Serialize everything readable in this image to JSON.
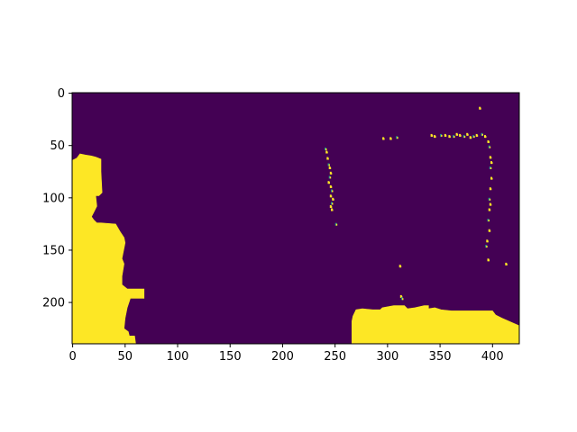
{
  "chart_data": {
    "type": "heatmap",
    "title": "",
    "xlabel": "",
    "ylabel": "",
    "image_shape": [
      240,
      426
    ],
    "xlim": [
      -0.5,
      425.5
    ],
    "ylim": [
      239.5,
      -0.5
    ],
    "xticks": [
      0,
      50,
      100,
      150,
      200,
      250,
      300,
      350,
      400
    ],
    "xtick_labels": [
      "0",
      "50",
      "100",
      "150",
      "200",
      "250",
      "300",
      "350",
      "400"
    ],
    "yticks": [
      0,
      50,
      100,
      150,
      200
    ],
    "ytick_labels": [
      "0",
      "50",
      "100",
      "150",
      "200"
    ],
    "colormap": "viridis",
    "colors": {
      "low": "#440154",
      "high": "#fde725",
      "mid": "#21918c"
    },
    "value_range": [
      0,
      1
    ],
    "regions": [
      {
        "name": "left-blob",
        "value": 1,
        "polygon": [
          [
            0,
            64
          ],
          [
            4,
            62
          ],
          [
            7,
            58
          ],
          [
            12,
            59
          ],
          [
            18,
            60
          ],
          [
            22,
            61
          ],
          [
            27,
            63
          ],
          [
            27,
            75
          ],
          [
            28,
            95
          ],
          [
            25,
            98
          ],
          [
            22,
            98
          ],
          [
            23,
            108
          ],
          [
            20,
            114
          ],
          [
            18,
            118
          ],
          [
            20,
            121
          ],
          [
            23,
            124
          ],
          [
            27,
            124
          ],
          [
            41,
            125
          ],
          [
            45,
            132
          ],
          [
            49,
            138
          ],
          [
            50,
            143
          ],
          [
            47,
            158
          ],
          [
            49,
            163
          ],
          [
            47,
            175
          ],
          [
            47,
            183
          ],
          [
            52,
            187
          ],
          [
            68,
            187
          ],
          [
            68,
            196
          ],
          [
            55,
            196
          ],
          [
            52,
            205
          ],
          [
            50,
            215
          ],
          [
            49,
            225
          ],
          [
            53,
            228
          ],
          [
            54,
            232
          ],
          [
            59,
            232
          ],
          [
            60,
            239
          ],
          [
            0,
            239
          ]
        ]
      },
      {
        "name": "bottom-right-blob",
        "value": 1,
        "polygon": [
          [
            266,
            239
          ],
          [
            266,
            218
          ],
          [
            267,
            213
          ],
          [
            270,
            207
          ],
          [
            276,
            206
          ],
          [
            286,
            207
          ],
          [
            293,
            207
          ],
          [
            295,
            205
          ],
          [
            306,
            203
          ],
          [
            316,
            203
          ],
          [
            319,
            206
          ],
          [
            326,
            205
          ],
          [
            335,
            203
          ],
          [
            339,
            203
          ],
          [
            339,
            206
          ],
          [
            345,
            205
          ],
          [
            351,
            207
          ],
          [
            361,
            208
          ],
          [
            375,
            208
          ],
          [
            400,
            208
          ],
          [
            403,
            212
          ],
          [
            409,
            215
          ],
          [
            418,
            219
          ],
          [
            425,
            222
          ],
          [
            425,
            239
          ]
        ]
      }
    ],
    "specks": [
      [
        240,
        52
      ],
      [
        241,
        55
      ],
      [
        242,
        61
      ],
      [
        243,
        67
      ],
      [
        244,
        70
      ],
      [
        245,
        75
      ],
      [
        244,
        79
      ],
      [
        243,
        84
      ],
      [
        245,
        88
      ],
      [
        246,
        92
      ],
      [
        245,
        97
      ],
      [
        247,
        100
      ],
      [
        246,
        104
      ],
      [
        245,
        107
      ],
      [
        246,
        110
      ],
      [
        250,
        124
      ],
      [
        295,
        42
      ],
      [
        302,
        42
      ],
      [
        308,
        41
      ],
      [
        311,
        164
      ],
      [
        312,
        193
      ],
      [
        313,
        195
      ],
      [
        341,
        39
      ],
      [
        344,
        40
      ],
      [
        350,
        39
      ],
      [
        354,
        39
      ],
      [
        358,
        40
      ],
      [
        362,
        40
      ],
      [
        365,
        38
      ],
      [
        368,
        39
      ],
      [
        372,
        40
      ],
      [
        375,
        38
      ],
      [
        378,
        41
      ],
      [
        381,
        40
      ],
      [
        384,
        39
      ],
      [
        387,
        13
      ],
      [
        389,
        38
      ],
      [
        392,
        40
      ],
      [
        395,
        45
      ],
      [
        396,
        50
      ],
      [
        397,
        60
      ],
      [
        398,
        65
      ],
      [
        397,
        70
      ],
      [
        398,
        80
      ],
      [
        397,
        90
      ],
      [
        396,
        100
      ],
      [
        397,
        105
      ],
      [
        396,
        110
      ],
      [
        395,
        120
      ],
      [
        396,
        130
      ],
      [
        394,
        140
      ],
      [
        393,
        145
      ],
      [
        395,
        158
      ],
      [
        412,
        162
      ]
    ]
  }
}
